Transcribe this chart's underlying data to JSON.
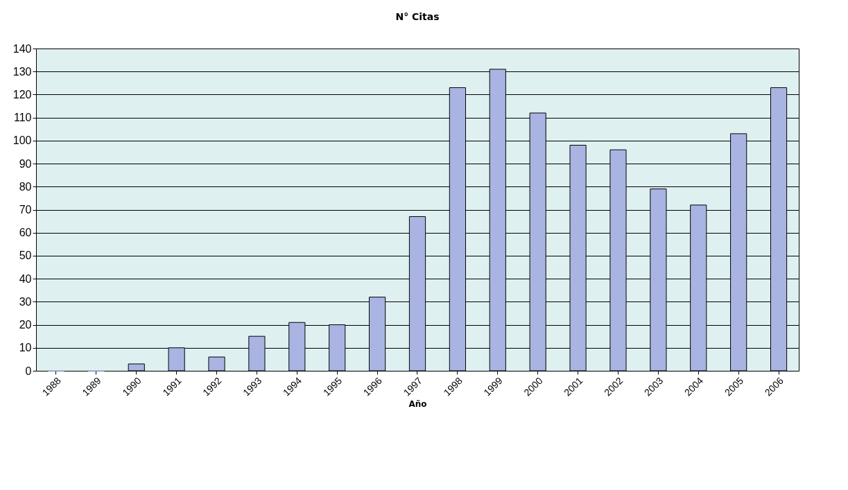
{
  "chart_data": {
    "type": "bar",
    "title": "N° Citas",
    "xlabel": "Año",
    "categories": [
      "1988",
      "1989",
      "1990",
      "1991",
      "1992",
      "1993",
      "1994",
      "1995",
      "1996",
      "1997",
      "1998",
      "1999",
      "2000",
      "2001",
      "2002",
      "2003",
      "2004",
      "2005",
      "2006"
    ],
    "values": [
      0,
      0,
      3,
      10,
      6,
      15,
      21,
      20,
      32,
      67,
      123,
      131,
      112,
      98,
      96,
      79,
      72,
      103,
      123
    ],
    "color": "#a9b4e2",
    "ylim": [
      0,
      140
    ],
    "yticks": [
      0,
      10,
      20,
      30,
      40,
      50,
      60,
      70,
      80,
      90,
      100,
      110,
      120,
      130,
      140
    ],
    "grid": "y"
  }
}
